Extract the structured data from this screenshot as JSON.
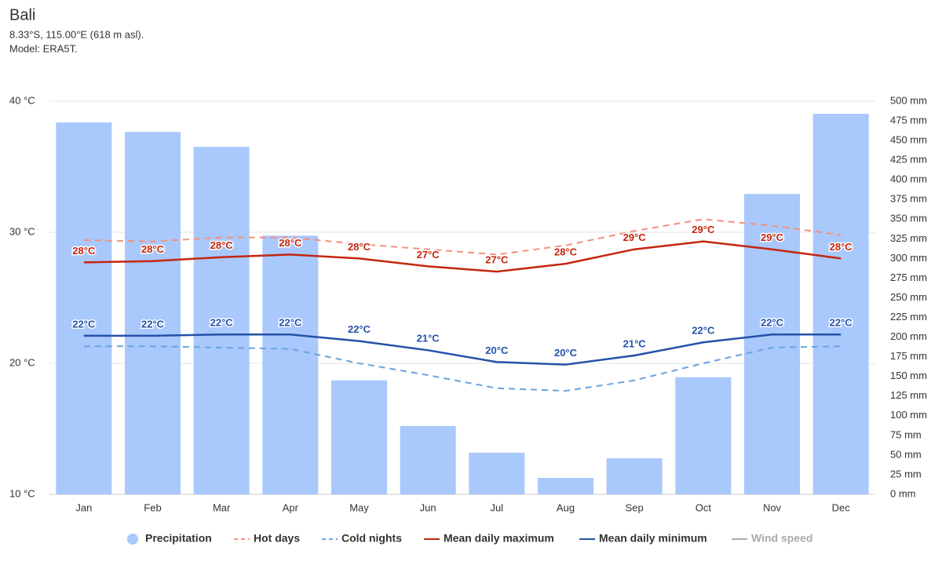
{
  "chart_data": {
    "type": "bar-line",
    "title": "Bali",
    "subtitle": [
      "8.33°S, 115.00°E (618 m asl).",
      "Model: ERA5T."
    ],
    "categories": [
      "Jan",
      "Feb",
      "Mar",
      "Apr",
      "May",
      "Jun",
      "Jul",
      "Aug",
      "Sep",
      "Oct",
      "Nov",
      "Dec"
    ],
    "ylim": [
      10,
      40
    ],
    "yticks": [
      {
        "value": 10,
        "label": "10 °C"
      },
      {
        "value": 20,
        "label": "20 °C"
      },
      {
        "value": 30,
        "label": "30 °C"
      },
      {
        "value": 40,
        "label": "40 °C"
      }
    ],
    "y2lim": [
      0,
      500
    ],
    "y2ticks": [
      {
        "value": 0,
        "label": "0 mm"
      },
      {
        "value": 25,
        "label": "25 mm"
      },
      {
        "value": 50,
        "label": "50 mm"
      },
      {
        "value": 75,
        "label": "75 mm"
      },
      {
        "value": 100,
        "label": "100 mm"
      },
      {
        "value": 125,
        "label": "125 mm"
      },
      {
        "value": 150,
        "label": "150 mm"
      },
      {
        "value": 175,
        "label": "175 mm"
      },
      {
        "value": 200,
        "label": "200 mm"
      },
      {
        "value": 225,
        "label": "225 mm"
      },
      {
        "value": 250,
        "label": "250 mm"
      },
      {
        "value": 275,
        "label": "275 mm"
      },
      {
        "value": 300,
        "label": "300 mm"
      },
      {
        "value": 325,
        "label": "325 mm"
      },
      {
        "value": 350,
        "label": "350 mm"
      },
      {
        "value": 375,
        "label": "375 mm"
      },
      {
        "value": 400,
        "label": "400 mm"
      },
      {
        "value": 425,
        "label": "425 mm"
      },
      {
        "value": 450,
        "label": "450 mm"
      },
      {
        "value": 475,
        "label": "475 mm"
      },
      {
        "value": 500,
        "label": "500 mm"
      }
    ],
    "grid": true,
    "legend": "bottom",
    "series": [
      {
        "name": "Precipitation",
        "type": "bar",
        "axis": "y2",
        "color": "#a9c8fc",
        "values": [
          473,
          461,
          442,
          329,
          145,
          87,
          53,
          21,
          46,
          149,
          382,
          484
        ]
      },
      {
        "name": "Hot days",
        "type": "line",
        "dash": true,
        "color": "#f4917a",
        "values": [
          29.4,
          29.3,
          29.6,
          29.6,
          29.1,
          28.7,
          28.3,
          29.0,
          30.1,
          31.0,
          30.5,
          29.8
        ]
      },
      {
        "name": "Cold nights",
        "type": "line",
        "dash": true,
        "color": "#6aa4dd",
        "values": [
          21.3,
          21.3,
          21.2,
          21.1,
          20.0,
          19.1,
          18.1,
          17.9,
          18.7,
          20.0,
          21.2,
          21.3
        ]
      },
      {
        "name": "Mean daily maximum",
        "type": "line",
        "color": "#c4260f",
        "values": [
          27.7,
          27.8,
          28.1,
          28.3,
          28.0,
          27.4,
          27.0,
          27.6,
          28.7,
          29.3,
          28.7,
          28.0
        ],
        "value_labels": [
          "28°C",
          "28°C",
          "28°C",
          "28°C",
          "28°C",
          "27°C",
          "27°C",
          "28°C",
          "29°C",
          "29°C",
          "29°C",
          "28°C"
        ]
      },
      {
        "name": "Mean daily minimum",
        "type": "line",
        "color": "#2451a8",
        "values": [
          22.1,
          22.1,
          22.2,
          22.2,
          21.7,
          21.0,
          20.1,
          19.9,
          20.6,
          21.6,
          22.2,
          22.2
        ],
        "value_labels": [
          "22°C",
          "22°C",
          "22°C",
          "22°C",
          "22°C",
          "21°C",
          "20°C",
          "20°C",
          "21°C",
          "22°C",
          "22°C",
          "22°C"
        ]
      },
      {
        "name": "Wind speed",
        "type": "line",
        "hidden": true,
        "color": "#aaaaaa"
      }
    ]
  }
}
